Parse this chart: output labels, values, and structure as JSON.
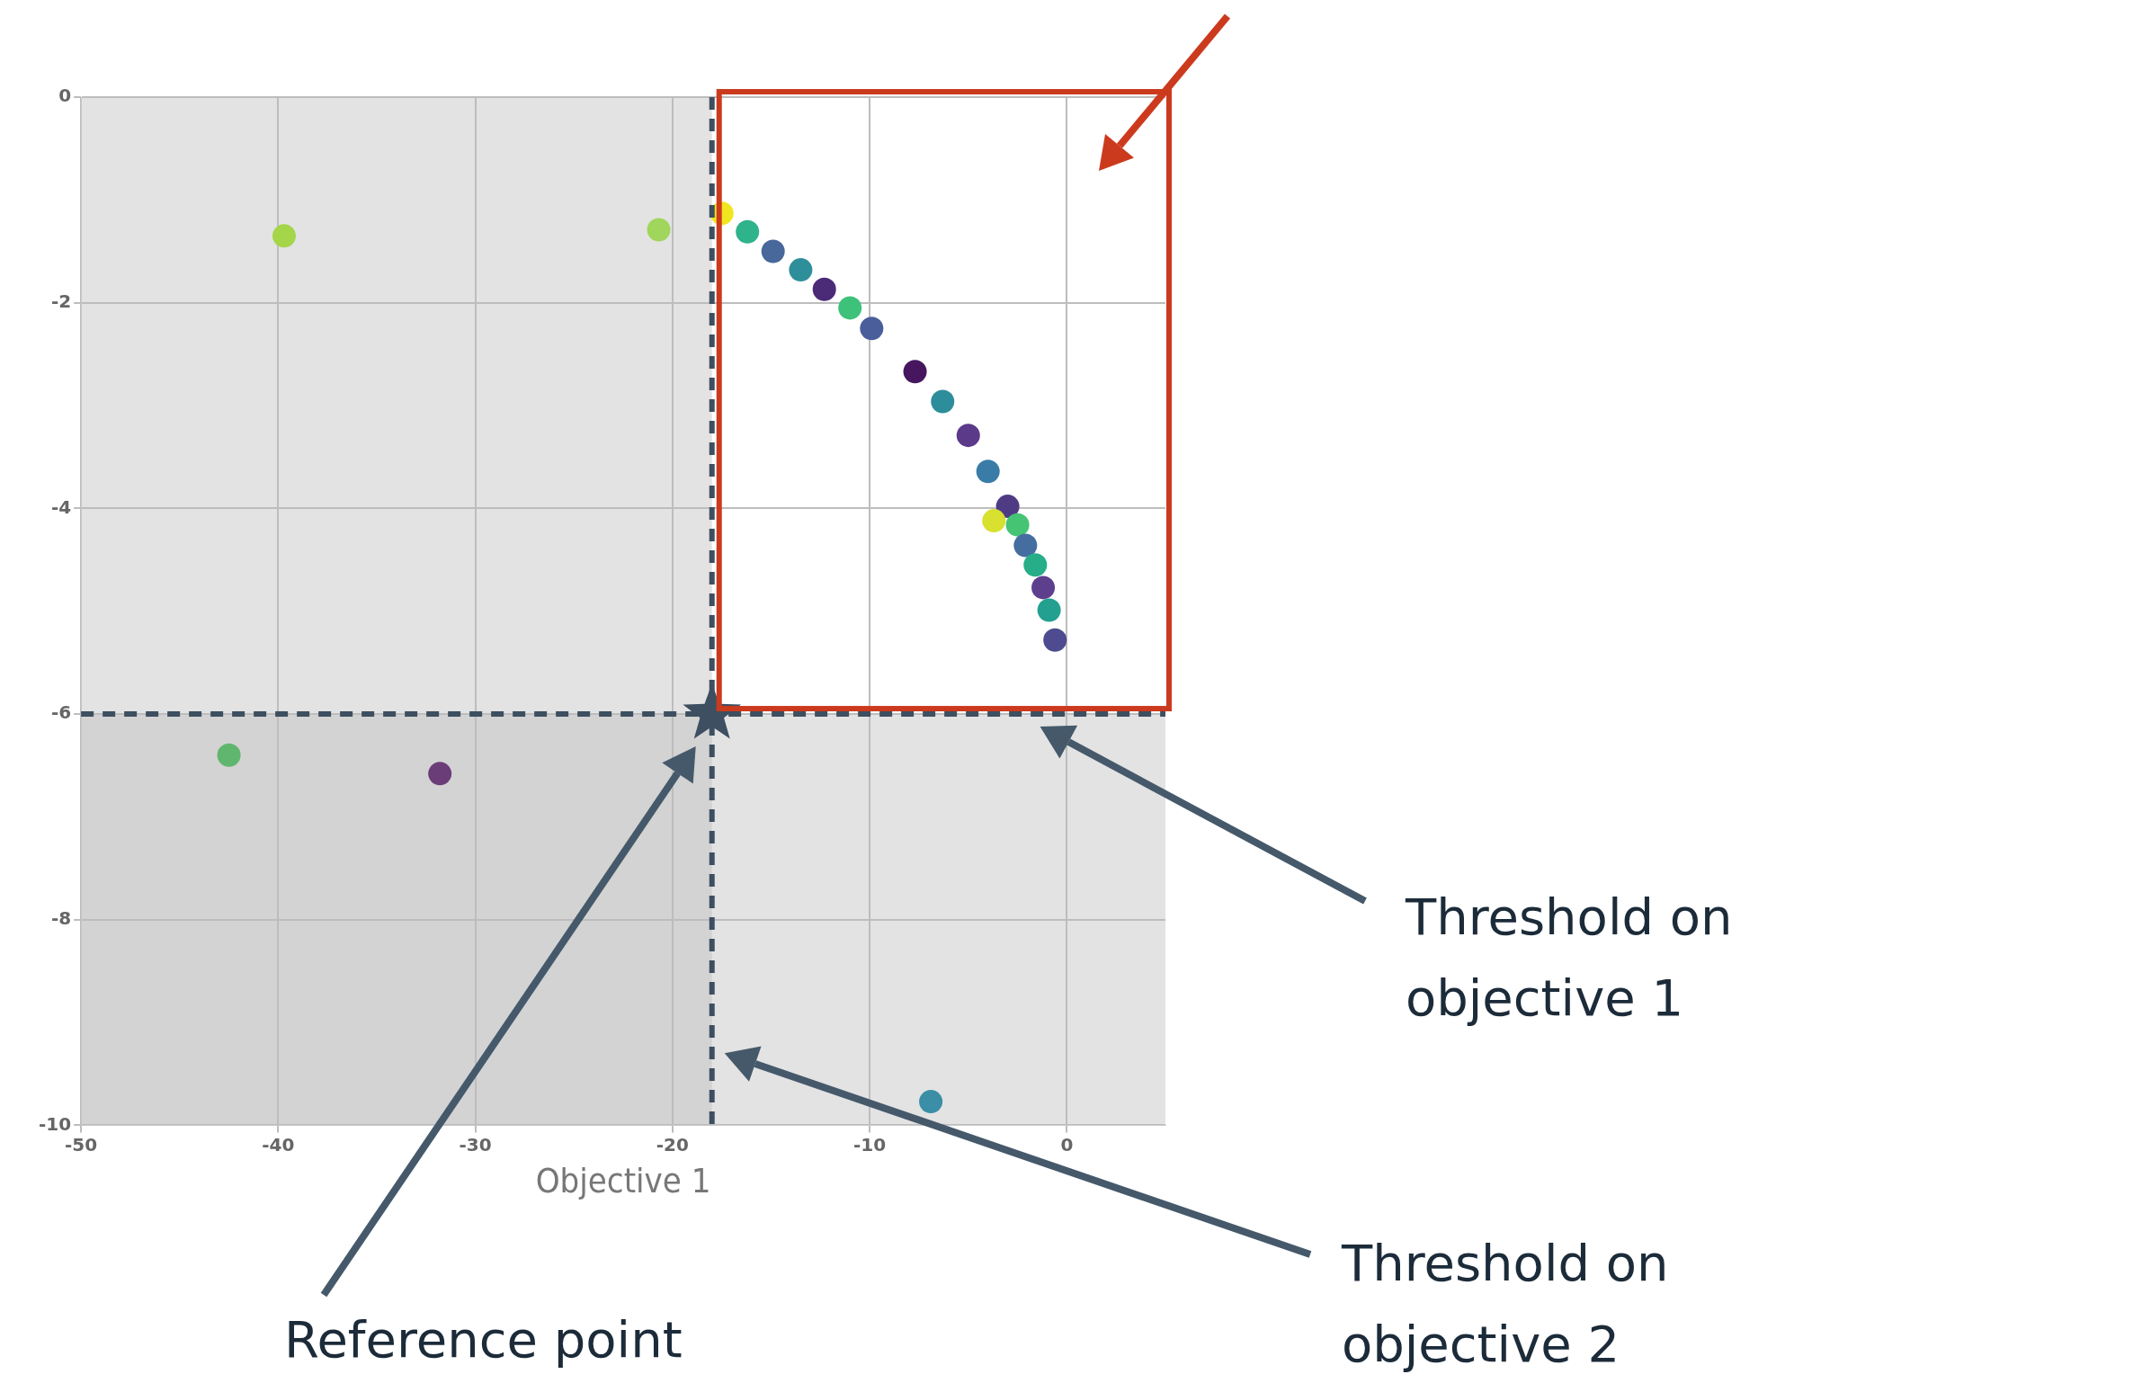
{
  "chart_data": {
    "type": "scatter",
    "xlabel": "Objective 1",
    "xlim": [
      -50,
      5
    ],
    "ylim": [
      -10,
      0
    ],
    "xticks": [
      -50,
      -40,
      -30,
      -20,
      -10,
      0
    ],
    "yticks": [
      -10,
      -8,
      -6,
      -4,
      -2,
      0
    ],
    "grid": true,
    "legend": false,
    "series": [
      {
        "marker": "circle",
        "x": [
          -39.7,
          -20.7,
          -17.5,
          -16.2,
          -14.9,
          -13.5,
          -12.3,
          -11.0,
          -9.9,
          -7.7,
          -6.3,
          -5.0,
          -4.0,
          -3.0,
          -3.7,
          -2.5,
          -2.1,
          -1.6,
          -1.2,
          -0.9,
          -0.6,
          -42.5,
          -31.8,
          -6.9
        ],
        "values": [
          -1.35,
          -1.29,
          -1.13,
          -1.31,
          -1.5,
          -1.68,
          -1.87,
          -2.05,
          -2.25,
          -2.67,
          -2.96,
          -3.29,
          -3.64,
          -3.98,
          -4.12,
          -4.16,
          -4.36,
          -4.55,
          -4.77,
          -4.99,
          -5.28,
          -6.4,
          -6.58,
          -9.77
        ],
        "colors": [
          "#a5d548",
          "#a0d65b",
          "#f0e51f",
          "#2fb38a",
          "#48679a",
          "#2e8f9a",
          "#4b2a78",
          "#3ec17a",
          "#4a5e9c",
          "#46175e",
          "#2e8d9b",
          "#5b3a8a",
          "#3a7ca8",
          "#4f3b84",
          "#d8e030",
          "#45c474",
          "#456da0",
          "#27ad88",
          "#5d3f8e",
          "#23a08f",
          "#4e4b90",
          "#60b66e",
          "#6a3d79",
          "#3a8ea5"
        ]
      },
      {
        "marker": "star",
        "color": "#3d4f60",
        "x": [
          -18
        ],
        "values": [
          -6
        ]
      }
    ],
    "ref_lines": [
      {
        "axis": "x",
        "value": -18,
        "color": "#3d4f60",
        "line_style": "dashed"
      },
      {
        "axis": "y",
        "value": -6,
        "color": "#3d4f60",
        "line_style": "dashed"
      }
    ],
    "bands": [
      {
        "axis": "x",
        "from": -50,
        "to": -18,
        "color": "#bcbcbc"
      },
      {
        "axis": "y",
        "from": -10,
        "to": -6,
        "color": "#bcbcbc"
      }
    ],
    "annotations": [
      "Threshold on objective 1",
      "Threshold on objective 2",
      "Reference point"
    ]
  }
}
